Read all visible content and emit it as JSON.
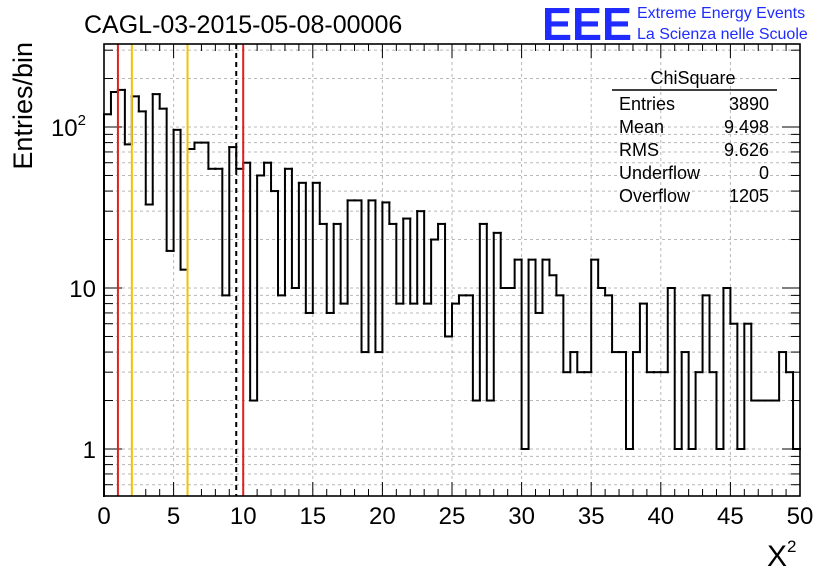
{
  "header": {
    "title": "CAGL-03-2015-05-08-00006",
    "logo_mark": "EEE",
    "logo_line1": "Extreme Energy Events",
    "logo_line2": "La Scienza nelle Scuole"
  },
  "stats_box": {
    "title": "ChiSquare",
    "rows": [
      {
        "label": "Entries",
        "value": "3890"
      },
      {
        "label": "Mean",
        "value": "9.498"
      },
      {
        "label": "RMS",
        "value": "9.626"
      },
      {
        "label": "Underflow",
        "value": "0"
      },
      {
        "label": "Overflow",
        "value": "1205"
      }
    ]
  },
  "chart_data": {
    "type": "histogram",
    "title": "CAGL-03-2015-05-08-00006",
    "xlabel": "X",
    "xlabel_superscript": "2",
    "ylabel": "Entries/bin",
    "xlim": [
      0,
      50
    ],
    "ylim": [
      0.5,
      320
    ],
    "yscale": "log",
    "grid": true,
    "bin_width": 0.5,
    "x_ticks": [
      "0",
      "5",
      "10",
      "15",
      "20",
      "25",
      "30",
      "35",
      "40",
      "45",
      "50"
    ],
    "y_ticks": [
      {
        "value": 1,
        "base": "1",
        "exp": ""
      },
      {
        "value": 10,
        "base": "10",
        "exp": ""
      },
      {
        "value": 100,
        "base": "10",
        "exp": "2"
      }
    ],
    "values": [
      120,
      165,
      170,
      78,
      155,
      125,
      33,
      160,
      130,
      17,
      96,
      13,
      73,
      80,
      80,
      55,
      55,
      9,
      75,
      55,
      60,
      2,
      50,
      60,
      40,
      9,
      55,
      10,
      45,
      7,
      45,
      25,
      7,
      25,
      8,
      35,
      35,
      4,
      35,
      4,
      34,
      25,
      8,
      27,
      8,
      30,
      8,
      20,
      25,
      5,
      8,
      9,
      9,
      2,
      25,
      2,
      22,
      10,
      10,
      15,
      1,
      15,
      7,
      15,
      12,
      9,
      3,
      4,
      3,
      3,
      15,
      10,
      9,
      4,
      4,
      1,
      4,
      8,
      3,
      3,
      3,
      10,
      1,
      4,
      1,
      3,
      9,
      3,
      1,
      10,
      6,
      1,
      6,
      2,
      2,
      2,
      2,
      4,
      3,
      1
    ],
    "vertical_lines": [
      {
        "x": 1,
        "color": "#e02020",
        "style": "solid"
      },
      {
        "x": 2,
        "color": "#f2c200",
        "style": "solid"
      },
      {
        "x": 6,
        "color": "#f2c200",
        "style": "solid"
      },
      {
        "x": 9.5,
        "color": "#000000",
        "style": "dashed"
      },
      {
        "x": 10,
        "color": "#e02020",
        "style": "solid"
      }
    ]
  },
  "colors": {
    "logo": "#1f2bff",
    "histogram": "#000000",
    "grid": "#b8b8b8"
  }
}
